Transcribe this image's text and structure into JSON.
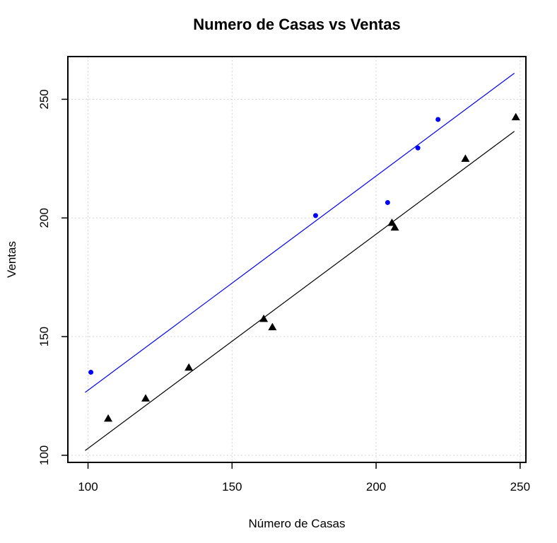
{
  "chart_data": {
    "type": "scatter",
    "title": "Numero de Casas vs Ventas",
    "xlabel": "Número de Casas",
    "ylabel": "Ventas",
    "xlim": [
      93,
      252
    ],
    "ylim": [
      97,
      268
    ],
    "x_ticks": [
      100,
      150,
      200,
      250
    ],
    "y_ticks": [
      100,
      150,
      200,
      250
    ],
    "grid": true,
    "series": [
      {
        "marker": "circle",
        "color": "#0000ff",
        "points": [
          {
            "x": 101,
            "y": 135
          },
          {
            "x": 179,
            "y": 201
          },
          {
            "x": 204,
            "y": 206.5
          },
          {
            "x": 214.5,
            "y": 229.5
          },
          {
            "x": 221.5,
            "y": 241.5
          }
        ],
        "fit_line": {
          "x": [
            99,
            248
          ],
          "y": [
            126.5,
            261
          ]
        }
      },
      {
        "marker": "triangle",
        "color": "#000000",
        "points": [
          {
            "x": 107,
            "y": 115.5
          },
          {
            "x": 120,
            "y": 124
          },
          {
            "x": 135,
            "y": 137
          },
          {
            "x": 161,
            "y": 157.5
          },
          {
            "x": 164,
            "y": 154
          },
          {
            "x": 205.5,
            "y": 198
          },
          {
            "x": 206.5,
            "y": 196
          },
          {
            "x": 231,
            "y": 225
          },
          {
            "x": 248.5,
            "y": 242.5
          }
        ],
        "fit_line": {
          "x": [
            99,
            248
          ],
          "y": [
            102,
            236.5
          ]
        }
      }
    ]
  }
}
